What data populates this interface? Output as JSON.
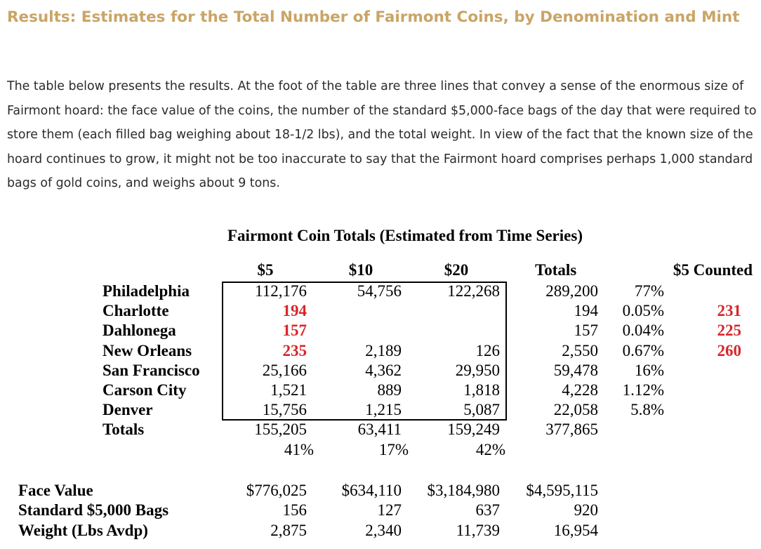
{
  "heading": "Results: Estimates for the Total Number of Fairmont Coins, by Denomination and Mint",
  "intro": "The table below presents the results. At the foot of the table are three lines that convey a sense of the enormous size of Fairmont hoard: the face value of the coins, the number of the standard $5,000-face bags of the day that were required to store them (each filled bag weighing about 18-1/2 lbs), and the total weight. In view of the fact that the known size of the hoard continues to grow, it might not be too inaccurate to say that the Fairmont hoard comprises perhaps 1,000 standard bags of gold coins, and weighs about 9 tons.",
  "table": {
    "title": "Fairmont Coin Totals (Estimated from Time Series)",
    "headers": {
      "c5": "$5",
      "c10": "$10",
      "c20": "$20",
      "totals": "Totals",
      "counted": "$5 Counted"
    },
    "rows": [
      {
        "mint": "Philadelphia",
        "c5": "112,176",
        "c10": "54,756",
        "c20": "122,268",
        "total": "289,200",
        "pct": "77%",
        "counted": ""
      },
      {
        "mint": "Charlotte",
        "c5": "194",
        "c10": "",
        "c20": "",
        "total": "194",
        "pct": "0.05%",
        "counted": "231"
      },
      {
        "mint": "Dahlonega",
        "c5": "157",
        "c10": "",
        "c20": "",
        "total": "157",
        "pct": "0.04%",
        "counted": "225"
      },
      {
        "mint": "New Orleans",
        "c5": "235",
        "c10": "2,189",
        "c20": "126",
        "total": "2,550",
        "pct": "0.67%",
        "counted": "260"
      },
      {
        "mint": "San Francisco",
        "c5": "25,166",
        "c10": "4,362",
        "c20": "29,950",
        "total": "59,478",
        "pct": "16%",
        "counted": ""
      },
      {
        "mint": "Carson City",
        "c5": "1,521",
        "c10": "889",
        "c20": "1,818",
        "total": "4,228",
        "pct": "1.12%",
        "counted": ""
      },
      {
        "mint": "Denver",
        "c5": "15,756",
        "c10": "1,215",
        "c20": "5,087",
        "total": "22,058",
        "pct": "5.8%",
        "counted": ""
      },
      {
        "mint": "Totals",
        "c5": "155,205",
        "c10": "63,411",
        "c20": "159,249",
        "total": "377,865",
        "pct": "",
        "counted": ""
      }
    ],
    "share": {
      "c5": "41%",
      "c10": "17%",
      "c20": "42%"
    },
    "footer": [
      {
        "label": "Face Value",
        "c5": "$776,025",
        "c10": "$634,110",
        "c20": "$3,184,980",
        "total": "$4,595,115"
      },
      {
        "label": "Standard $5,000 Bags",
        "c5": "156",
        "c10": "127",
        "c20": "637",
        "total": "920"
      },
      {
        "label": "Weight (Lbs Avdp)",
        "c5": "2,875",
        "c10": "2,340",
        "c20": "11,739",
        "total": "16,954"
      }
    ],
    "colors": {
      "heading": "#c9a566",
      "highlight": "#d7262a"
    }
  }
}
